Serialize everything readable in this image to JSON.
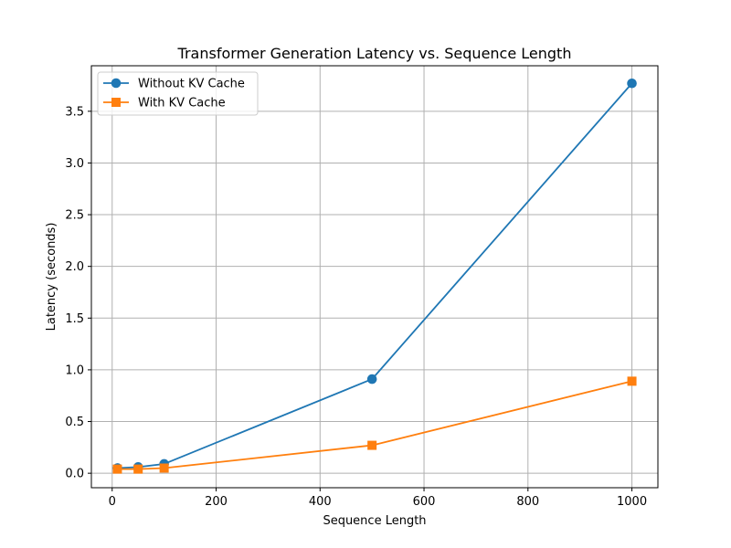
{
  "chart_data": {
    "type": "line",
    "title": "Transformer Generation Latency vs. Sequence Length",
    "xlabel": "Sequence Length",
    "ylabel": "Latency (seconds)",
    "xlim": [
      -40,
      1050
    ],
    "ylim": [
      -0.14,
      3.94
    ],
    "xticks": [
      0,
      200,
      400,
      600,
      800,
      1000
    ],
    "xtick_labels": [
      "0",
      "200",
      "400",
      "600",
      "800",
      "1000"
    ],
    "yticks": [
      0.0,
      0.5,
      1.0,
      1.5,
      2.0,
      2.5,
      3.0,
      3.5
    ],
    "ytick_labels": [
      "0.0",
      "0.5",
      "1.0",
      "1.5",
      "2.0",
      "2.5",
      "3.0",
      "3.5"
    ],
    "grid": true,
    "legend_position": "top-left",
    "x": [
      10,
      50,
      100,
      500,
      1000
    ],
    "series": [
      {
        "name": "Without KV Cache",
        "values": [
          0.05,
          0.06,
          0.09,
          0.91,
          3.77
        ],
        "color": "#1f77b4",
        "marker": "circle"
      },
      {
        "name": "With KV Cache",
        "values": [
          0.04,
          0.04,
          0.05,
          0.27,
          0.89
        ],
        "color": "#ff7f0e",
        "marker": "square"
      }
    ]
  }
}
